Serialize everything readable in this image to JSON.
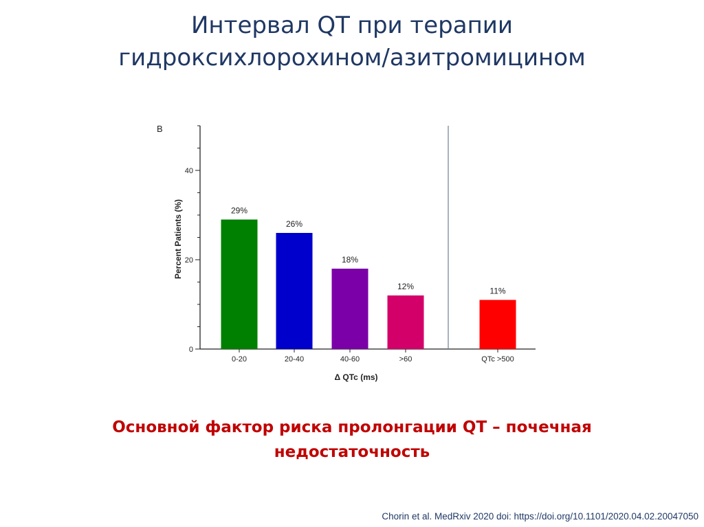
{
  "slide": {
    "title_lines": [
      "Интервал QT при терапии",
      "гидроксихлорохином/азитромицином"
    ],
    "conclusion": "Основной фактор риска пролонгации QT – почечная недостаточность",
    "citation": "Chorin et al. MedRxiv 2020 doi: https://doi.org/10.1101/2020.04.02.20047050"
  },
  "chart_data": {
    "type": "bar",
    "panel_label": "B",
    "title": "",
    "xlabel": "Δ QTc (ms)",
    "ylabel": "Percent Patients (%)",
    "ylim": [
      0,
      50
    ],
    "yticks": [
      0,
      20,
      40
    ],
    "grid": false,
    "legend": "none",
    "categories": [
      "0-20",
      "20-40",
      "40-60",
      ">60",
      "QTc >500"
    ],
    "values": [
      29,
      26,
      18,
      12,
      11
    ],
    "data_labels": [
      "29%",
      "26%",
      "18%",
      "12%",
      "11%"
    ],
    "colors": [
      "#008000",
      "#0000cc",
      "#7b00a8",
      "#d4006a",
      "#ff0000"
    ],
    "separator_before_category": 4
  }
}
